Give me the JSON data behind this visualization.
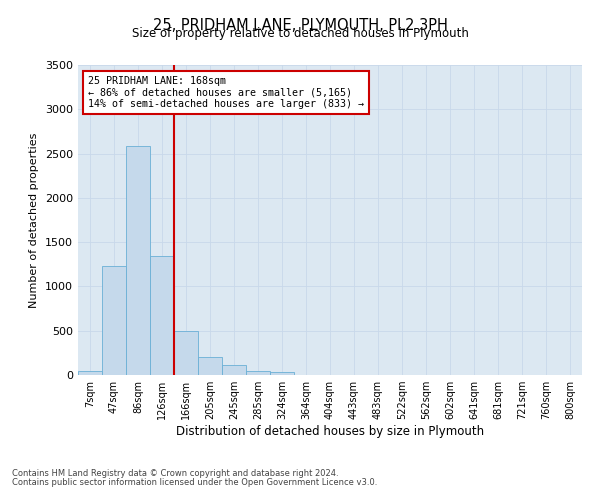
{
  "title": "25, PRIDHAM LANE, PLYMOUTH, PL2 3PH",
  "subtitle": "Size of property relative to detached houses in Plymouth",
  "xlabel": "Distribution of detached houses by size in Plymouth",
  "ylabel": "Number of detached properties",
  "bar_labels": [
    "7sqm",
    "47sqm",
    "86sqm",
    "126sqm",
    "166sqm",
    "205sqm",
    "245sqm",
    "285sqm",
    "324sqm",
    "364sqm",
    "404sqm",
    "443sqm",
    "483sqm",
    "522sqm",
    "562sqm",
    "602sqm",
    "641sqm",
    "681sqm",
    "721sqm",
    "760sqm",
    "800sqm"
  ],
  "bar_values": [
    50,
    1230,
    2580,
    1340,
    500,
    200,
    115,
    50,
    30,
    0,
    0,
    0,
    0,
    0,
    0,
    0,
    0,
    0,
    0,
    0,
    0
  ],
  "bar_color": "#c5d9eb",
  "bar_edge_color": "#6aafd6",
  "vline_color": "#cc0000",
  "annotation_line1": "25 PRIDHAM LANE: 168sqm",
  "annotation_line2": "← 86% of detached houses are smaller (5,165)",
  "annotation_line3": "14% of semi-detached houses are larger (833) →",
  "box_color": "#cc0000",
  "ylim": [
    0,
    3500
  ],
  "yticks": [
    0,
    500,
    1000,
    1500,
    2000,
    2500,
    3000,
    3500
  ],
  "grid_color": "#c8d8ea",
  "background_color": "#dce8f2",
  "footnote1": "Contains HM Land Registry data © Crown copyright and database right 2024.",
  "footnote2": "Contains public sector information licensed under the Open Government Licence v3.0."
}
